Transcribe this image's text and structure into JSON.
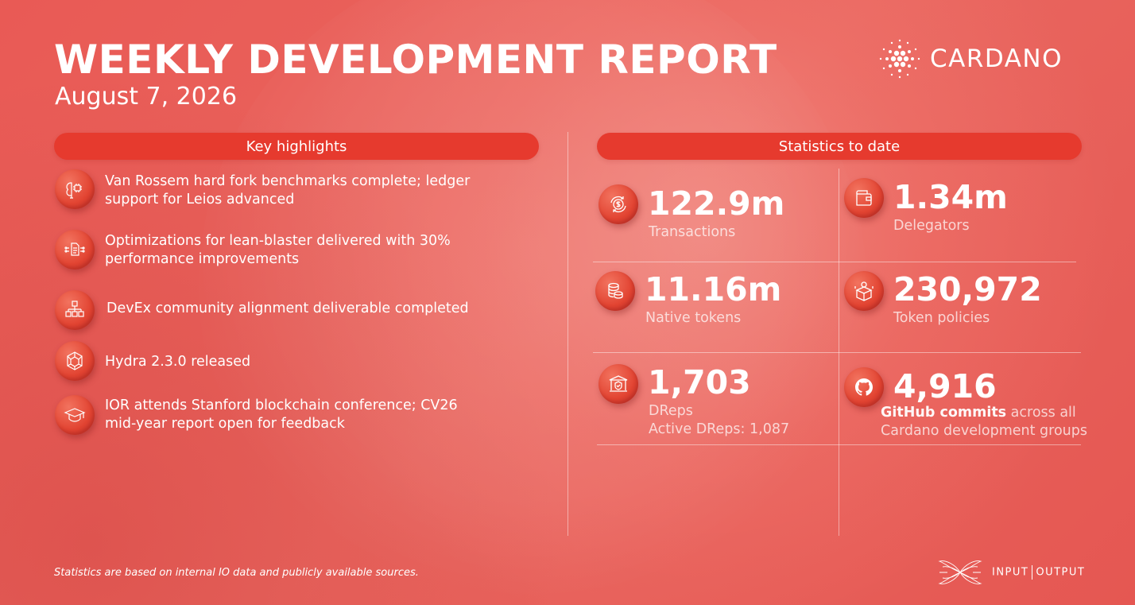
{
  "header": {
    "title": "WEEKLY DEVELOPMENT REPORT",
    "date": "August 7, 2026",
    "brand": "CARDANO"
  },
  "highlights": {
    "heading": "Key highlights",
    "items": [
      {
        "icon": "brain-chip-icon",
        "line1": "Van Rossem hard fork benchmarks complete; ledger",
        "line2": "support for Leios advanced"
      },
      {
        "icon": "document-network-icon",
        "line1": "Optimizations for lean-blaster delivered with 30%",
        "line2": "performance improvements"
      },
      {
        "icon": "hierarchy-icon",
        "line1": "DevEx community alignment deliverable completed",
        "line2": ""
      },
      {
        "icon": "hexagon-network-icon",
        "line1": "Hydra 2.3.0 released",
        "line2": ""
      },
      {
        "icon": "graduation-cap-icon",
        "line1": "IOR attends Stanford blockchain conference; CV26",
        "line2": "mid-year report open for feedback"
      }
    ]
  },
  "stats": {
    "heading": "Statistics to date",
    "transactions": {
      "value": "122.9m",
      "label": "Transactions",
      "icon": "dollar-cycle-icon"
    },
    "delegators": {
      "value": "1.34m",
      "label": "Delegators",
      "icon": "wallet-icon"
    },
    "native_tokens": {
      "value": "11.16m",
      "label": "Native tokens",
      "icon": "coin-stack-icon"
    },
    "token_policies": {
      "value": "230,972",
      "label": "Token policies",
      "icon": "token-box-icon"
    },
    "dreps": {
      "value": "1,703",
      "label": "DReps",
      "sublabel": "Active DReps: 1,087",
      "icon": "governance-building-icon"
    },
    "github": {
      "value": "4,916",
      "label_bold": "GitHub commits",
      "label_rest": " across all",
      "label_line2": "Cardano development groups",
      "icon": "github-icon"
    }
  },
  "footer": {
    "footnote": "Statistics are based on internal IO data and publicly available sources.",
    "io_left": "INPUT",
    "io_right": "OUTPUT"
  }
}
